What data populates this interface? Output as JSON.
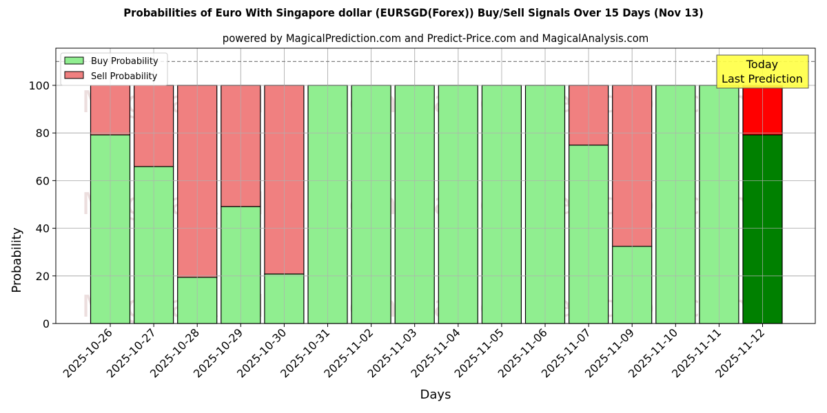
{
  "header": {
    "title": "Probabilities of Euro With Singapore dollar (EURSGD(Forex)) Buy/Sell Signals Over 15 Days (Nov 13)",
    "subtitle": "powered by MagicalPrediction.com and Predict-Price.com and MagicalAnalysis.com"
  },
  "axes": {
    "xlabel": "Days",
    "ylabel": "Probability",
    "yticks": [
      "0",
      "20",
      "40",
      "60",
      "80",
      "100"
    ]
  },
  "legend": {
    "buy_label": "Buy Probability",
    "sell_label": "Sell Probability"
  },
  "annotation": {
    "line1": "Today",
    "line2": "Last Prediction"
  },
  "watermarks": [
    "MagicalAnalysis.com",
    "MagicalPrediction.com"
  ],
  "colors": {
    "buy": "#90ee90",
    "sell": "#f08080",
    "buy_today": "#008000",
    "sell_today": "#ff0000",
    "annotation_bg": "#ffff44"
  },
  "chart_data": {
    "type": "bar",
    "stacked": true,
    "title": "Probabilities of Euro With Singapore dollar (EURSGD(Forex)) Buy/Sell Signals Over 15 Days (Nov 13)",
    "subtitle": "powered by MagicalPrediction.com and Predict-Price.com and MagicalAnalysis.com",
    "xlabel": "Days",
    "ylabel": "Probability",
    "ylim": [
      0,
      115
    ],
    "grid": true,
    "legend_position": "upper left",
    "reference_line": {
      "y": 110,
      "style": "dashed"
    },
    "categories": [
      "2025-10-26",
      "2025-10-27",
      "2025-10-28",
      "2025-10-29",
      "2025-10-30",
      "2025-10-31",
      "2025-11-02",
      "2025-11-03",
      "2025-11-04",
      "2025-11-05",
      "2025-11-06",
      "2025-11-07",
      "2025-11-09",
      "2025-11-10",
      "2025-11-11",
      "2025-11-12"
    ],
    "series": [
      {
        "name": "Buy Probability",
        "values": [
          79.2,
          65.9,
          19.4,
          49.1,
          20.8,
          100,
          100,
          100,
          100,
          100,
          100,
          74.9,
          32.4,
          100,
          100,
          79.2
        ]
      },
      {
        "name": "Sell Probability",
        "values": [
          20.8,
          34.1,
          80.6,
          50.9,
          79.2,
          0,
          0,
          0,
          0,
          0,
          0,
          25.1,
          67.6,
          0,
          0,
          20.8
        ]
      }
    ],
    "annotations": [
      {
        "text": "Today\nLast Prediction",
        "x": "2025-11-12"
      }
    ]
  }
}
